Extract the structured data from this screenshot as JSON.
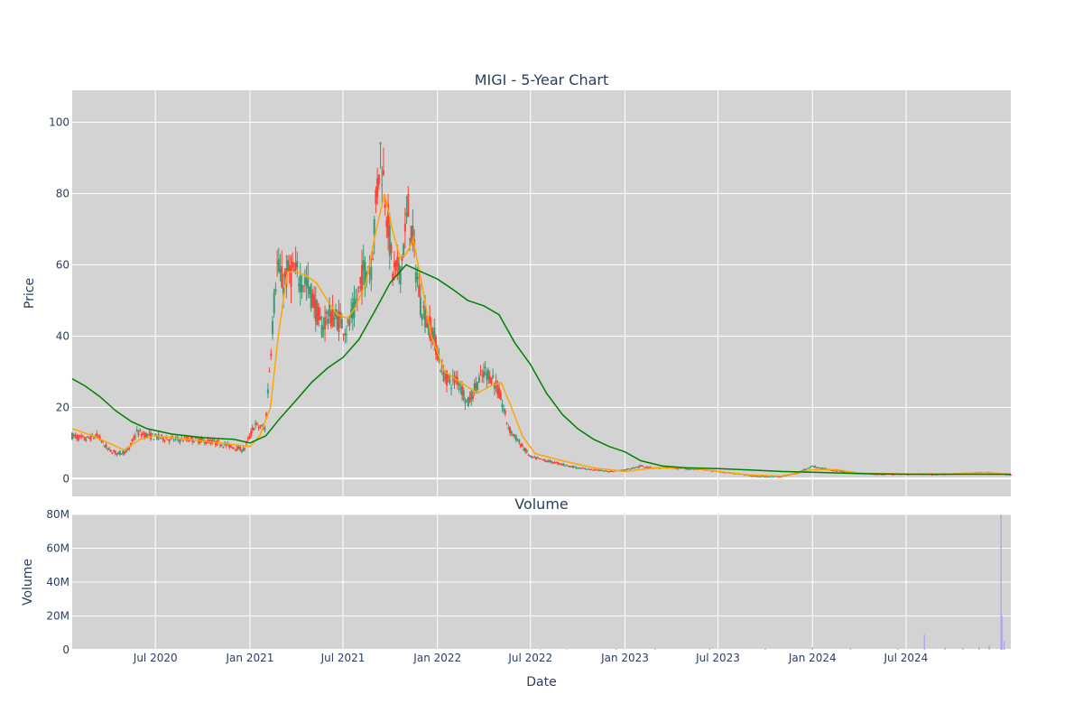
{
  "chart_data": [
    {
      "type": "candlestick",
      "title": "MIGI - 5-Year Chart",
      "ylabel": "Price",
      "xlabel": "",
      "ylim": [
        -5,
        109
      ],
      "xlim": [
        "2020-01-21",
        "2025-01-21"
      ],
      "x_ticks": [
        "2020-07-01",
        "2021-01-01",
        "2021-07-01",
        "2022-01-01",
        "2022-07-01",
        "2023-01-01",
        "2023-07-01",
        "2024-01-01",
        "2024-07-01"
      ],
      "y_ticks": [
        0,
        20,
        40,
        60,
        80,
        100
      ],
      "grid": true,
      "colors": {
        "increasing": "#3d9970",
        "decreasing": "#ff4136",
        "ma_short": "#ffa500",
        "ma_long": "#008000",
        "plot_bg": "#d3d3d3"
      },
      "price_path": [
        [
          "2020-01-21",
          12
        ],
        [
          "2020-02-15",
          11
        ],
        [
          "2020-03-10",
          12
        ],
        [
          "2020-04-01",
          8
        ],
        [
          "2020-04-20",
          7
        ],
        [
          "2020-05-10",
          8
        ],
        [
          "2020-05-25",
          13
        ],
        [
          "2020-06-20",
          12
        ],
        [
          "2020-08-01",
          11
        ],
        [
          "2020-09-15",
          11
        ],
        [
          "2020-11-01",
          10
        ],
        [
          "2020-12-20",
          8
        ],
        [
          "2021-01-10",
          15
        ],
        [
          "2021-01-31",
          14
        ],
        [
          "2021-02-10",
          35
        ],
        [
          "2021-02-22",
          60
        ],
        [
          "2021-03-05",
          55
        ],
        [
          "2021-03-20",
          58
        ],
        [
          "2021-04-05",
          57
        ],
        [
          "2021-04-20",
          55
        ],
        [
          "2021-05-05",
          50
        ],
        [
          "2021-05-20",
          42
        ],
        [
          "2021-06-01",
          46
        ],
        [
          "2021-06-20",
          45
        ],
        [
          "2021-07-10",
          42
        ],
        [
          "2021-07-25",
          48
        ],
        [
          "2021-08-10",
          58
        ],
        [
          "2021-08-25",
          60
        ],
        [
          "2021-09-05",
          80
        ],
        [
          "2021-09-12",
          92
        ],
        [
          "2021-09-25",
          75
        ],
        [
          "2021-10-05",
          58
        ],
        [
          "2021-10-20",
          58
        ],
        [
          "2021-11-05",
          75
        ],
        [
          "2021-11-15",
          65
        ],
        [
          "2021-11-28",
          50
        ],
        [
          "2021-12-10",
          45
        ],
        [
          "2021-12-25",
          40
        ],
        [
          "2022-01-10",
          30
        ],
        [
          "2022-01-25",
          27
        ],
        [
          "2022-02-10",
          28
        ],
        [
          "2022-03-01",
          21
        ],
        [
          "2022-03-20",
          27
        ],
        [
          "2022-04-05",
          30
        ],
        [
          "2022-04-20",
          28
        ],
        [
          "2022-05-05",
          22
        ],
        [
          "2022-05-20",
          14
        ],
        [
          "2022-06-10",
          10
        ],
        [
          "2022-07-01",
          6
        ],
        [
          "2022-08-01",
          5
        ],
        [
          "2022-09-01",
          4
        ],
        [
          "2022-10-01",
          3
        ],
        [
          "2022-11-01",
          2.5
        ],
        [
          "2022-12-01",
          2
        ],
        [
          "2023-01-01",
          2.5
        ],
        [
          "2023-02-01",
          3.5
        ],
        [
          "2023-03-01",
          3
        ],
        [
          "2023-04-01",
          3
        ],
        [
          "2023-06-01",
          2.5
        ],
        [
          "2023-08-01",
          1.5
        ],
        [
          "2023-09-15",
          0.6
        ],
        [
          "2023-11-01",
          0.6
        ],
        [
          "2023-12-01",
          1.5
        ],
        [
          "2024-01-01",
          3.5
        ],
        [
          "2024-02-01",
          2.5
        ],
        [
          "2024-03-15",
          1.8
        ],
        [
          "2024-05-01",
          1.2
        ],
        [
          "2024-07-01",
          1.3
        ],
        [
          "2024-09-01",
          1.2
        ],
        [
          "2024-11-01",
          1.5
        ],
        [
          "2024-12-01",
          1.8
        ],
        [
          "2025-01-21",
          1
        ]
      ],
      "series": [
        {
          "name": "",
          "color": "#ffa500",
          "points": [
            [
              "2020-01-21",
              14
            ],
            [
              "2020-03-01",
              12
            ],
            [
              "2020-04-01",
              10
            ],
            [
              "2020-05-01",
              8
            ],
            [
              "2020-06-01",
              11
            ],
            [
              "2020-07-01",
              12
            ],
            [
              "2020-09-01",
              11
            ],
            [
              "2020-11-01",
              10
            ],
            [
              "2021-01-01",
              9
            ],
            [
              "2021-01-20",
              12
            ],
            [
              "2021-02-10",
              20
            ],
            [
              "2021-02-25",
              40
            ],
            [
              "2021-03-15",
              58
            ],
            [
              "2021-04-01",
              58
            ],
            [
              "2021-04-20",
              57
            ],
            [
              "2021-05-10",
              55
            ],
            [
              "2021-06-01",
              50
            ],
            [
              "2021-06-20",
              46
            ],
            [
              "2021-07-10",
              45
            ],
            [
              "2021-07-25",
              48
            ],
            [
              "2021-08-15",
              55
            ],
            [
              "2021-09-01",
              68
            ],
            [
              "2021-09-20",
              80
            ],
            [
              "2021-10-05",
              70
            ],
            [
              "2021-10-20",
              62
            ],
            [
              "2021-11-01",
              63
            ],
            [
              "2021-11-15",
              67
            ],
            [
              "2021-12-01",
              55
            ],
            [
              "2021-12-20",
              40
            ],
            [
              "2022-01-15",
              30
            ],
            [
              "2022-02-15",
              27
            ],
            [
              "2022-03-20",
              24
            ],
            [
              "2022-04-15",
              26
            ],
            [
              "2022-05-05",
              27
            ],
            [
              "2022-05-25",
              20
            ],
            [
              "2022-06-15",
              12
            ],
            [
              "2022-07-10",
              7
            ],
            [
              "2022-09-01",
              5
            ],
            [
              "2022-11-01",
              3
            ],
            [
              "2023-01-01",
              2
            ],
            [
              "2023-03-01",
              3
            ],
            [
              "2023-05-01",
              3
            ],
            [
              "2023-07-01",
              2
            ],
            [
              "2023-09-01",
              1
            ],
            [
              "2023-11-01",
              0.7
            ],
            [
              "2024-01-01",
              2.5
            ],
            [
              "2024-02-15",
              2.5
            ],
            [
              "2024-04-01",
              1.5
            ],
            [
              "2024-07-01",
              1.3
            ],
            [
              "2024-10-01",
              1.3
            ],
            [
              "2024-12-01",
              1.7
            ],
            [
              "2025-01-21",
              1.2
            ]
          ]
        },
        {
          "name": "",
          "color": "#008000",
          "points": [
            [
              "2020-01-21",
              28
            ],
            [
              "2020-02-15",
              26
            ],
            [
              "2020-03-15",
              23
            ],
            [
              "2020-04-15",
              19
            ],
            [
              "2020-05-15",
              16
            ],
            [
              "2020-06-15",
              14
            ],
            [
              "2020-08-01",
              12.5
            ],
            [
              "2020-10-01",
              11.5
            ],
            [
              "2020-12-01",
              11
            ],
            [
              "2021-01-01",
              10
            ],
            [
              "2021-02-01",
              12
            ],
            [
              "2021-03-01",
              17
            ],
            [
              "2021-04-01",
              22
            ],
            [
              "2021-05-01",
              27
            ],
            [
              "2021-06-01",
              31
            ],
            [
              "2021-07-01",
              34
            ],
            [
              "2021-08-01",
              39
            ],
            [
              "2021-09-01",
              47
            ],
            [
              "2021-10-01",
              55
            ],
            [
              "2021-11-01",
              60
            ],
            [
              "2021-12-01",
              58
            ],
            [
              "2022-01-01",
              56
            ],
            [
              "2022-02-01",
              53
            ],
            [
              "2022-03-01",
              50
            ],
            [
              "2022-04-01",
              48.5
            ],
            [
              "2022-05-01",
              46
            ],
            [
              "2022-06-01",
              38
            ],
            [
              "2022-07-01",
              32
            ],
            [
              "2022-08-01",
              24
            ],
            [
              "2022-09-01",
              18
            ],
            [
              "2022-10-01",
              14
            ],
            [
              "2022-11-01",
              11
            ],
            [
              "2022-12-01",
              9
            ],
            [
              "2023-01-01",
              7.5
            ],
            [
              "2023-02-01",
              5
            ],
            [
              "2023-03-15",
              3.5
            ],
            [
              "2023-05-01",
              3
            ],
            [
              "2023-07-01",
              2.8
            ],
            [
              "2023-09-01",
              2.4
            ],
            [
              "2023-11-01",
              2
            ],
            [
              "2024-01-01",
              1.8
            ],
            [
              "2024-04-01",
              1.4
            ],
            [
              "2024-07-01",
              1.2
            ],
            [
              "2024-10-01",
              1.2
            ],
            [
              "2025-01-21",
              1.2
            ]
          ]
        }
      ]
    },
    {
      "type": "bar",
      "title": "Volume",
      "ylabel": "Volume",
      "xlabel": "Date",
      "ylim": [
        0,
        80000000
      ],
      "y_ticks": [
        0,
        20000000,
        40000000,
        60000000,
        80000000
      ],
      "y_tick_labels": [
        "0",
        "20M",
        "40M",
        "60M",
        "80M"
      ],
      "x_tick_labels": [
        "Jul 2020",
        "Jan 2021",
        "Jul 2021",
        "Jan 2022",
        "Jul 2022",
        "Jan 2023",
        "Jul 2023",
        "Jan 2024",
        "Jul 2024"
      ],
      "bar_color": "#b0a8e8",
      "x": [
        "2022-07-20",
        "2022-09-10",
        "2022-12-15",
        "2023-03-01",
        "2023-06-15",
        "2023-10-01",
        "2024-01-01",
        "2024-03-15",
        "2024-06-15",
        "2024-08-06",
        "2024-09-15",
        "2024-10-20",
        "2024-11-20",
        "2024-12-10",
        "2025-01-02",
        "2025-01-04",
        "2025-01-08"
      ],
      "values": [
        400000,
        300000,
        500000,
        600000,
        700000,
        800000,
        1500000,
        900000,
        600000,
        9000000,
        1500000,
        1200000,
        1800000,
        2500000,
        80000000,
        20000000,
        5000000
      ]
    }
  ]
}
